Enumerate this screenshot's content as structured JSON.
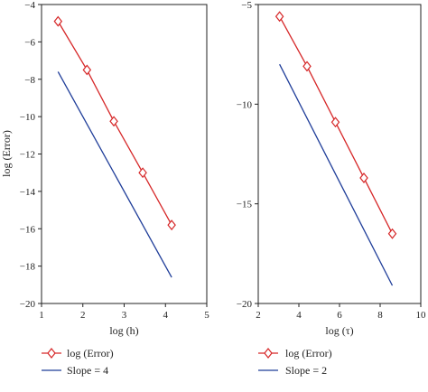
{
  "colors": {
    "error_series": "#d62728",
    "slope_series": "#1f3d99",
    "axis": "#222222"
  },
  "chart_data": [
    {
      "type": "line",
      "xlabel": "log (h)",
      "ylabel": "log (Error)",
      "xlim": [
        1,
        5
      ],
      "ylim": [
        -20,
        -4
      ],
      "xticks": [
        1,
        2,
        3,
        4,
        5
      ],
      "yticks": [
        -20,
        -18,
        -16,
        -14,
        -12,
        -10,
        -8,
        -6,
        -4
      ],
      "grid": false,
      "legend_position": "below-left",
      "series": [
        {
          "name": "log (Error)",
          "marker": "diamond",
          "x": [
            1.4,
            2.1,
            2.75,
            3.45,
            4.15
          ],
          "y": [
            -4.9,
            -7.5,
            -10.25,
            -13.0,
            -15.8
          ]
        },
        {
          "name": "Slope = 4",
          "marker": "none",
          "x": [
            1.4,
            4.15
          ],
          "y": [
            -7.6,
            -18.6
          ]
        }
      ]
    },
    {
      "type": "line",
      "xlabel": "log (τ)",
      "ylabel": "",
      "xlim": [
        2,
        10
      ],
      "ylim": [
        -20,
        -5
      ],
      "xticks": [
        2,
        4,
        6,
        8,
        10
      ],
      "yticks": [
        -20,
        -15,
        -10,
        -5
      ],
      "grid": false,
      "legend_position": "below-left",
      "series": [
        {
          "name": "log (Error)",
          "marker": "diamond",
          "x": [
            3.05,
            4.4,
            5.8,
            7.2,
            8.6
          ],
          "y": [
            -5.6,
            -8.1,
            -10.9,
            -13.7,
            -16.5
          ]
        },
        {
          "name": "Slope = 2",
          "marker": "none",
          "x": [
            3.05,
            8.6
          ],
          "y": [
            -8.0,
            -19.1
          ]
        }
      ]
    }
  ]
}
